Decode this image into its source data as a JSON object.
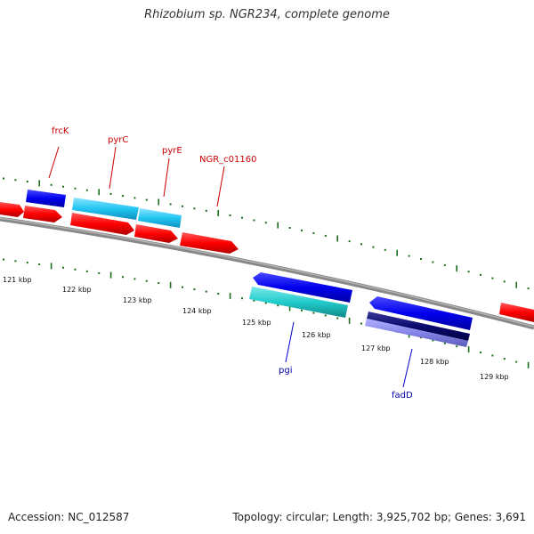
{
  "title": "Rhizobium sp. NGR234, complete genome",
  "accession": "Accession: NC_012587",
  "stats": "Topology: circular; Length: 3,925,702 bp; Genes: 3,691",
  "colors": {
    "forward_label": "#cc0000",
    "reverse_label": "#0000aa",
    "tick": "#1a6e1a",
    "backbone": "#808080"
  },
  "scale_labels": [
    "121 kbp",
    "122 kbp",
    "123 kbp",
    "124 kbp",
    "125 kbp",
    "126 kbp",
    "127 kbp",
    "128 kbp",
    "129 kbp"
  ],
  "genes": [
    {
      "id": "frcK",
      "label": "frcK",
      "strand": "forward"
    },
    {
      "id": "pyrC",
      "label": "pyrC",
      "strand": "forward"
    },
    {
      "id": "pyrE",
      "label": "pyrE",
      "strand": "forward"
    },
    {
      "id": "NGR_c01160",
      "label": "NGR_c01160",
      "strand": "forward"
    },
    {
      "id": "pgi",
      "label": "pgi",
      "strand": "reverse"
    },
    {
      "id": "fadD",
      "label": "fadD",
      "strand": "reverse"
    }
  ]
}
